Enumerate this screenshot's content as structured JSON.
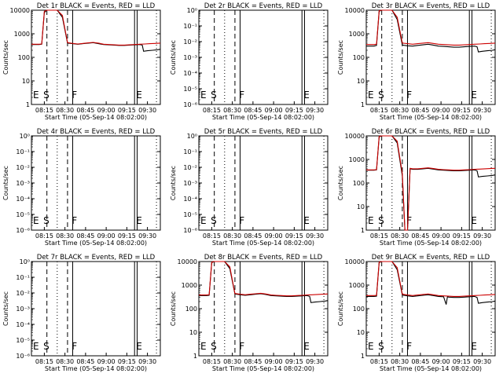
{
  "chart_data": [
    {
      "type": "line",
      "title": "Det 1r BLACK = Events, RED = LLD",
      "xlabel": "Start Time (05-Sep-14 08:02:00)",
      "ylabel": "Counts/sec",
      "scale": "log",
      "ytick_labels": [
        "10000",
        "1000",
        "100",
        "10",
        "1"
      ],
      "yticks": [
        10000,
        1000,
        100,
        10,
        1
      ],
      "xticks": [
        "08:15",
        "08:30",
        "08:45",
        "09:00",
        "09:15",
        "09:30"
      ],
      "annotations": [
        "E",
        "S",
        "F",
        "E"
      ],
      "series": [
        {
          "color": "#000000",
          "x": [
            0,
            0.06,
            0.08,
            0.1,
            0.12,
            0.14,
            0.16,
            0.18,
            0.2,
            0.24,
            0.28,
            0.32,
            0.36,
            0.4,
            0.44,
            0.48,
            0.52,
            0.56,
            0.6,
            0.64,
            0.68,
            0.72,
            0.76,
            0.8,
            0.84,
            0.86,
            0.87,
            0.9,
            0.94,
            0.98,
            1.0
          ],
          "y": [
            350,
            350,
            360,
            8000,
            10000,
            10000,
            10000,
            10000,
            10000,
            5000,
            400,
            380,
            360,
            380,
            400,
            420,
            380,
            350,
            340,
            330,
            320,
            320,
            330,
            340,
            350,
            330,
            180,
            190,
            200,
            210,
            220
          ]
        },
        {
          "color": "#cc0000",
          "x": [
            0,
            0.06,
            0.08,
            0.1,
            0.12,
            0.14,
            0.16,
            0.18,
            0.2,
            0.24,
            0.28,
            0.32,
            0.36,
            0.4,
            0.44,
            0.48,
            0.52,
            0.56,
            0.6,
            0.64,
            0.68,
            0.72,
            0.76,
            0.8,
            0.84,
            0.88,
            0.92,
            0.96,
            1.0
          ],
          "y": [
            360,
            360,
            370,
            9000,
            10000,
            10000,
            10000,
            10000,
            10000,
            6000,
            420,
            390,
            370,
            390,
            410,
            430,
            400,
            360,
            350,
            340,
            330,
            330,
            340,
            350,
            360,
            370,
            380,
            390,
            400
          ]
        }
      ]
    },
    {
      "type": "line",
      "title": "Det 2r BLACK = Events, RED = LLD",
      "xlabel": "Start Time (05-Sep-14 08:02:00)",
      "ylabel": "Counts/sec",
      "scale": "log",
      "ytick_labels": [
        "10⁻⁶",
        "10⁻⁵",
        "10⁻⁴",
        "10⁻³",
        "10⁻²",
        "10⁻¹",
        "10⁰"
      ],
      "yticks": [
        1e-06,
        1e-05,
        0.0001,
        0.001,
        0.01,
        0.1,
        1
      ],
      "xticks": [
        "08:15",
        "08:30",
        "08:45",
        "09:00",
        "09:15",
        "09:30"
      ],
      "annotations": [
        "E",
        "S",
        "F",
        "E"
      ],
      "series": []
    },
    {
      "type": "line",
      "title": "Det 3r BLACK = Events, RED = LLD",
      "xlabel": "Start Time (05-Sep-14 08:02:00)",
      "ylabel": "Counts/sec",
      "scale": "log",
      "ytick_labels": [
        "10000",
        "1000",
        "100",
        "10",
        "1"
      ],
      "yticks": [
        10000,
        1000,
        100,
        10,
        1
      ],
      "xticks": [
        "08:15",
        "08:30",
        "08:45",
        "09:00",
        "09:15",
        "09:30"
      ],
      "annotations": [
        "E",
        "S",
        "F",
        "E"
      ],
      "series": [
        {
          "color": "#000000",
          "x": [
            0,
            0.06,
            0.08,
            0.1,
            0.12,
            0.14,
            0.16,
            0.18,
            0.2,
            0.24,
            0.28,
            0.32,
            0.36,
            0.4,
            0.44,
            0.48,
            0.52,
            0.56,
            0.6,
            0.64,
            0.68,
            0.72,
            0.76,
            0.8,
            0.84,
            0.86,
            0.87,
            0.9,
            0.94,
            0.98,
            1.0
          ],
          "y": [
            300,
            300,
            320,
            9000,
            10000,
            10000,
            10000,
            10000,
            10000,
            4000,
            330,
            310,
            300,
            320,
            340,
            360,
            330,
            300,
            290,
            280,
            270,
            270,
            280,
            290,
            300,
            280,
            170,
            180,
            190,
            200,
            210
          ]
        },
        {
          "color": "#cc0000",
          "x": [
            0,
            0.06,
            0.08,
            0.1,
            0.12,
            0.14,
            0.16,
            0.18,
            0.2,
            0.24,
            0.28,
            0.32,
            0.36,
            0.4,
            0.44,
            0.48,
            0.52,
            0.56,
            0.6,
            0.64,
            0.68,
            0.72,
            0.76,
            0.8,
            0.84,
            0.88,
            0.92,
            0.96,
            1.0
          ],
          "y": [
            350,
            350,
            360,
            9500,
            10000,
            10000,
            10000,
            10000,
            10000,
            5000,
            400,
            380,
            360,
            380,
            400,
            420,
            390,
            360,
            350,
            340,
            330,
            330,
            340,
            350,
            360,
            370,
            380,
            390,
            400
          ]
        }
      ]
    },
    {
      "type": "line",
      "title": "Det 4r BLACK = Events, RED = LLD",
      "xlabel": "Start Time (05-Sep-14 08:02:00)",
      "ylabel": "Counts/sec",
      "scale": "log",
      "ytick_labels": [
        "10⁻⁶",
        "10⁻⁵",
        "10⁻⁴",
        "10⁻³",
        "10⁻²",
        "10⁻¹",
        "10⁰"
      ],
      "yticks": [
        1e-06,
        1e-05,
        0.0001,
        0.001,
        0.01,
        0.1,
        1
      ],
      "xticks": [
        "08:15",
        "08:30",
        "08:45",
        "09:00",
        "09:15",
        "09:30"
      ],
      "annotations": [
        "E",
        "S",
        "F",
        "E"
      ],
      "series": []
    },
    {
      "type": "line",
      "title": "Det 5r BLACK = Events, RED = LLD",
      "xlabel": "Start Time (05-Sep-14 08:02:00)",
      "ylabel": "Counts/sec",
      "scale": "log",
      "ytick_labels": [
        "10⁻⁶",
        "10⁻⁵",
        "10⁻⁴",
        "10⁻³",
        "10⁻²",
        "10⁻¹",
        "10⁰"
      ],
      "yticks": [
        1e-06,
        1e-05,
        0.0001,
        0.001,
        0.01,
        0.1,
        1
      ],
      "xticks": [
        "08:15",
        "08:30",
        "08:45",
        "09:00",
        "09:15",
        "09:30"
      ],
      "annotations": [
        "E",
        "S",
        "F",
        "E"
      ],
      "series": []
    },
    {
      "type": "line",
      "title": "Det 6r BLACK = Events, RED = LLD",
      "xlabel": "Start Time (05-Sep-14 08:02:00)",
      "ylabel": "Counts/sec",
      "scale": "log",
      "ytick_labels": [
        "10000",
        "1000",
        "100",
        "10",
        "1"
      ],
      "yticks": [
        10000,
        1000,
        100,
        10,
        1
      ],
      "xticks": [
        "08:15",
        "08:30",
        "08:45",
        "09:00",
        "09:15",
        "09:30"
      ],
      "annotations": [
        "E",
        "S",
        "F",
        "E"
      ],
      "series": [
        {
          "color": "#000000",
          "x": [
            0,
            0.06,
            0.08,
            0.1,
            0.12,
            0.14,
            0.16,
            0.18,
            0.2,
            0.24,
            0.28,
            0.3,
            0.32,
            0.34,
            0.36,
            0.4,
            0.44,
            0.48,
            0.52,
            0.56,
            0.6,
            0.64,
            0.68,
            0.72,
            0.76,
            0.8,
            0.84,
            0.86,
            0.87,
            0.9,
            0.94,
            0.98,
            1.0
          ],
          "y": [
            350,
            350,
            360,
            9000,
            10000,
            10000,
            10000,
            10000,
            10000,
            5000,
            200,
            1,
            1,
            400,
            380,
            380,
            400,
            420,
            390,
            360,
            350,
            340,
            330,
            330,
            340,
            350,
            360,
            330,
            180,
            190,
            200,
            210,
            220
          ]
        },
        {
          "color": "#cc0000",
          "x": [
            0,
            0.06,
            0.08,
            0.1,
            0.12,
            0.14,
            0.16,
            0.18,
            0.2,
            0.24,
            0.28,
            0.3,
            0.32,
            0.34,
            0.36,
            0.4,
            0.44,
            0.48,
            0.52,
            0.56,
            0.6,
            0.64,
            0.68,
            0.72,
            0.76,
            0.8,
            0.84,
            0.88,
            0.92,
            0.96,
            1.0
          ],
          "y": [
            360,
            360,
            370,
            9500,
            10000,
            10000,
            10000,
            10000,
            10000,
            6000,
            250,
            1,
            1,
            420,
            400,
            400,
            420,
            440,
            410,
            380,
            370,
            360,
            350,
            350,
            360,
            370,
            380,
            390,
            400,
            410,
            420
          ]
        }
      ]
    },
    {
      "type": "line",
      "title": "Det 7r BLACK = Events, RED = LLD",
      "xlabel": "Start Time (05-Sep-14 08:02:00)",
      "ylabel": "Counts/sec",
      "scale": "log",
      "ytick_labels": [
        "10⁻⁶",
        "10⁻⁵",
        "10⁻⁴",
        "10⁻³",
        "10⁻²",
        "10⁻¹",
        "10⁰"
      ],
      "yticks": [
        1e-06,
        1e-05,
        0.0001,
        0.001,
        0.01,
        0.1,
        1
      ],
      "xticks": [
        "08:15",
        "08:30",
        "08:45",
        "09:00",
        "09:15",
        "09:30"
      ],
      "annotations": [
        "E",
        "S",
        "F",
        "E"
      ],
      "series": []
    },
    {
      "type": "line",
      "title": "Det 8r BLACK = Events, RED = LLD",
      "xlabel": "Start Time (05-Sep-14 08:02:00)",
      "ylabel": "Counts/sec",
      "scale": "log",
      "ytick_labels": [
        "10000",
        "1000",
        "100",
        "10",
        "1"
      ],
      "yticks": [
        10000,
        1000,
        100,
        10,
        1
      ],
      "xticks": [
        "08:15",
        "08:30",
        "08:45",
        "09:00",
        "09:15",
        "09:30"
      ],
      "annotations": [
        "E",
        "S",
        "F",
        "E"
      ],
      "series": [
        {
          "color": "#000000",
          "x": [
            0,
            0.06,
            0.08,
            0.1,
            0.12,
            0.14,
            0.16,
            0.18,
            0.2,
            0.24,
            0.28,
            0.32,
            0.36,
            0.4,
            0.44,
            0.48,
            0.52,
            0.56,
            0.6,
            0.64,
            0.68,
            0.72,
            0.76,
            0.8,
            0.84,
            0.86,
            0.87,
            0.9,
            0.94,
            0.98,
            1.0
          ],
          "y": [
            360,
            360,
            370,
            9000,
            10000,
            10000,
            10000,
            10000,
            10000,
            5000,
            420,
            390,
            370,
            390,
            410,
            430,
            400,
            360,
            350,
            340,
            330,
            330,
            340,
            350,
            360,
            330,
            180,
            190,
            200,
            210,
            220
          ]
        },
        {
          "color": "#cc0000",
          "x": [
            0,
            0.06,
            0.08,
            0.1,
            0.12,
            0.14,
            0.16,
            0.18,
            0.2,
            0.24,
            0.28,
            0.32,
            0.36,
            0.4,
            0.44,
            0.48,
            0.52,
            0.56,
            0.6,
            0.64,
            0.68,
            0.72,
            0.76,
            0.8,
            0.84,
            0.88,
            0.92,
            0.96,
            1.0
          ],
          "y": [
            380,
            380,
            390,
            9500,
            10000,
            10000,
            10000,
            10000,
            10000,
            6000,
            440,
            410,
            390,
            410,
            430,
            450,
            420,
            380,
            370,
            360,
            350,
            350,
            360,
            370,
            380,
            390,
            400,
            410,
            420
          ]
        }
      ]
    },
    {
      "type": "line",
      "title": "Det 9r BLACK = Events, RED = LLD",
      "xlabel": "Start Time (05-Sep-14 08:02:00)",
      "ylabel": "Counts/sec",
      "scale": "log",
      "ytick_labels": [
        "10000",
        "1000",
        "100",
        "10",
        "1"
      ],
      "yticks": [
        10000,
        1000,
        100,
        10,
        1
      ],
      "xticks": [
        "08:15",
        "08:30",
        "08:45",
        "09:00",
        "09:15",
        "09:30"
      ],
      "annotations": [
        "E",
        "S",
        "F",
        "E"
      ],
      "series": [
        {
          "color": "#000000",
          "x": [
            0,
            0.06,
            0.08,
            0.1,
            0.12,
            0.14,
            0.16,
            0.18,
            0.2,
            0.24,
            0.28,
            0.32,
            0.36,
            0.4,
            0.44,
            0.48,
            0.52,
            0.56,
            0.6,
            0.62,
            0.63,
            0.64,
            0.68,
            0.72,
            0.76,
            0.8,
            0.84,
            0.86,
            0.87,
            0.9,
            0.94,
            0.98,
            1.0
          ],
          "y": [
            330,
            330,
            340,
            9000,
            10000,
            10000,
            10000,
            10000,
            10000,
            4500,
            380,
            350,
            330,
            350,
            370,
            390,
            360,
            330,
            320,
            150,
            320,
            310,
            300,
            300,
            310,
            320,
            330,
            300,
            170,
            180,
            190,
            200,
            210
          ]
        },
        {
          "color": "#cc0000",
          "x": [
            0,
            0.06,
            0.08,
            0.1,
            0.12,
            0.14,
            0.16,
            0.18,
            0.2,
            0.24,
            0.28,
            0.32,
            0.36,
            0.4,
            0.44,
            0.48,
            0.52,
            0.56,
            0.6,
            0.64,
            0.68,
            0.72,
            0.76,
            0.8,
            0.84,
            0.88,
            0.92,
            0.96,
            1.0
          ],
          "y": [
            360,
            360,
            370,
            9500,
            10000,
            10000,
            10000,
            10000,
            10000,
            5500,
            410,
            380,
            360,
            380,
            400,
            420,
            390,
            360,
            350,
            340,
            330,
            330,
            340,
            350,
            360,
            370,
            380,
            390,
            400
          ]
        }
      ]
    }
  ]
}
